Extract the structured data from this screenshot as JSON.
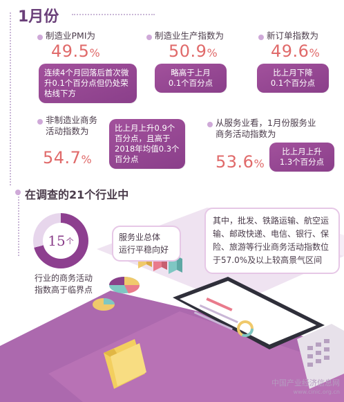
{
  "header": {
    "title": "1月份"
  },
  "metrics": {
    "pmi": {
      "label": "制造业PMI为",
      "value": "49.5",
      "unit": "%",
      "note": "连续4个月回落后首次微升0.1个百分点但仍处荣枯线下方"
    },
    "production": {
      "label": "制造业生产指数为",
      "value": "50.9",
      "unit": "%",
      "note_line1": "略高于上月",
      "note_line2": "0.1个百分点"
    },
    "new_orders": {
      "label": "新订单指数为",
      "value": "49.6",
      "unit": "%",
      "note_line1": "比上月下降",
      "note_line2": "0.1个百分点"
    },
    "non_manufacturing": {
      "label_line1": "非制造业商务",
      "label_line2": "活动指数为",
      "value": "54.7",
      "unit": "%",
      "note": "比上月上升0.9个百分点，且高于2018年均值0.3个百分点"
    },
    "services": {
      "label_line1": "从服务业看，1月份服务业",
      "label_line2": "商务活动指数为",
      "value": "53.6",
      "unit": "%",
      "note_line1": "比上月上升",
      "note_line2": "1.3个百分点"
    }
  },
  "survey": {
    "title": "在调查的21个行业中",
    "count": "15",
    "count_unit": "个",
    "count_caption_line1": "行业的商务活动",
    "count_caption_line2": "指数高于临界点",
    "bubble_service_line1": "服务业总体",
    "bubble_service_line2": "运行平稳向好",
    "bubble_detail": "其中，批发、铁路运输、航空运输、邮政快递、电信、银行、保险、旅游等行业商务活动指数位于57.0%及以上较高景气区间"
  },
  "watermark": {
    "cn": "中国产业经济信息网",
    "en": "www.cinic.org.cn"
  },
  "colors": {
    "accent": "#8a3f8a",
    "number": "#e06a6a",
    "title": "#6a3f79"
  }
}
